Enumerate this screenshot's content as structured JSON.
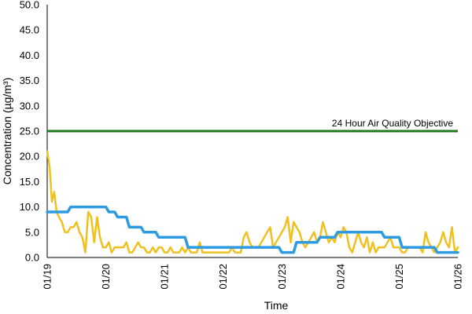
{
  "chart_data": {
    "type": "line",
    "title": "",
    "xlabel": "Time",
    "ylabel": "Concentration (µg/m³)",
    "ylim": [
      0,
      50
    ],
    "y_ticks": [
      "0.0",
      "5.0",
      "10.0",
      "15.0",
      "20.0",
      "25.0",
      "30.0",
      "35.0",
      "40.0",
      "45.0",
      "50.0"
    ],
    "x_range": [
      0,
      7
    ],
    "x_ticks": [
      "01/19",
      "01/20",
      "01/21",
      "01/22",
      "01/23",
      "01/24",
      "01/25",
      "01/26"
    ],
    "grid": false,
    "legend": "none",
    "objective": {
      "label": "24 Hour Air Quality Objective",
      "value": 25,
      "color": "#1e7a1e"
    },
    "series": [
      {
        "color": "#f0c020",
        "x": [
          0,
          0.04,
          0.08,
          0.12,
          0.16,
          0.2,
          0.25,
          0.3,
          0.35,
          0.4,
          0.45,
          0.5,
          0.55,
          0.6,
          0.65,
          0.7,
          0.75,
          0.8,
          0.85,
          0.9,
          0.95,
          1.0,
          1.05,
          1.1,
          1.15,
          1.2,
          1.25,
          1.3,
          1.35,
          1.4,
          1.45,
          1.5,
          1.55,
          1.6,
          1.65,
          1.7,
          1.75,
          1.8,
          1.85,
          1.9,
          1.95,
          2.0,
          2.05,
          2.1,
          2.15,
          2.2,
          2.25,
          2.3,
          2.35,
          2.4,
          2.45,
          2.5,
          2.55,
          2.6,
          2.65,
          2.7,
          2.75,
          2.8,
          2.85,
          2.9,
          2.95,
          3.0,
          3.05,
          3.1,
          3.15,
          3.2,
          3.25,
          3.3,
          3.35,
          3.4,
          3.45,
          3.5,
          3.55,
          3.6,
          3.65,
          3.7,
          3.75,
          3.8,
          3.85,
          3.9,
          3.95,
          4.0,
          4.05,
          4.1,
          4.15,
          4.2,
          4.25,
          4.3,
          4.35,
          4.4,
          4.45,
          4.5,
          4.55,
          4.6,
          4.65,
          4.7,
          4.75,
          4.8,
          4.85,
          4.9,
          4.95,
          5.0,
          5.05,
          5.1,
          5.15,
          5.2,
          5.25,
          5.3,
          5.35,
          5.4,
          5.45,
          5.5,
          5.55,
          5.6,
          5.65,
          5.7,
          5.75,
          5.8,
          5.85,
          5.9,
          5.95,
          6.0,
          6.05,
          6.1,
          6.15,
          6.2,
          6.25,
          6.3,
          6.35,
          6.4,
          6.45,
          6.5,
          6.55,
          6.6,
          6.65,
          6.7,
          6.75,
          6.8,
          6.85,
          6.9,
          6.95,
          7.0
        ],
        "y": [
          21,
          18,
          11,
          13,
          9,
          8,
          7,
          5,
          5,
          6,
          6,
          7,
          5,
          4,
          1,
          9,
          8,
          3,
          8,
          4,
          2,
          2,
          3,
          1,
          2,
          2,
          2,
          2,
          3,
          1,
          1,
          2,
          3,
          2,
          2,
          1,
          1,
          2,
          1,
          2,
          2,
          1,
          1,
          2,
          1,
          1,
          1,
          2,
          1,
          2,
          1,
          1,
          1,
          3,
          1,
          1,
          1,
          1,
          1,
          1,
          1,
          1,
          1,
          1,
          2,
          1,
          1,
          1,
          4,
          5,
          3,
          2,
          2,
          2,
          3,
          4,
          5,
          6,
          2,
          3,
          4,
          5,
          6,
          8,
          3,
          7,
          6,
          5,
          3,
          2,
          3,
          4,
          5,
          3,
          4,
          7,
          5,
          3,
          4,
          3,
          5,
          4,
          6,
          5,
          2,
          1,
          3,
          5,
          3,
          2,
          4,
          1,
          3,
          1,
          2,
          2,
          2,
          3,
          4,
          2,
          2,
          2,
          1,
          1,
          2,
          2,
          2,
          2,
          2,
          1,
          5,
          3,
          2,
          1,
          2,
          3,
          5,
          3,
          2,
          6,
          1,
          2
        ]
      },
      {
        "color": "#2e9be0",
        "x": [
          0,
          0.35,
          0.4,
          1.0,
          1.05,
          1.15,
          1.2,
          1.35,
          1.4,
          1.6,
          1.65,
          1.85,
          1.9,
          2.35,
          2.4,
          3.95,
          4.0,
          4.2,
          4.25,
          4.6,
          4.65,
          4.9,
          4.95,
          5.7,
          5.75,
          6.0,
          6.05,
          6.6,
          6.65,
          7.0
        ],
        "y": [
          9,
          9,
          10,
          10,
          9,
          9,
          8,
          8,
          6,
          6,
          5,
          5,
          4,
          4,
          2,
          2,
          1,
          1,
          3,
          3,
          4,
          4,
          5,
          5,
          4,
          4,
          2,
          2,
          1,
          1
        ]
      }
    ]
  }
}
